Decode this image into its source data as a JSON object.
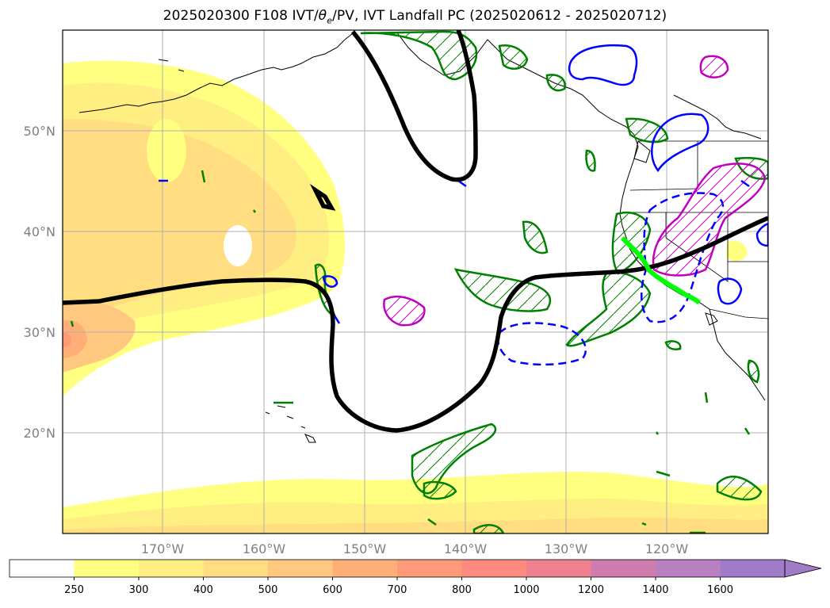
{
  "title": {
    "prefix": "2025020300 F108 IVT/",
    "theta": "θ",
    "theta_sub": "e",
    "suffix": "/PV, IVT Landfall PC (2025020612 - 2025020712)"
  },
  "axes": {
    "lat_labels": [
      "50°N",
      "40°N",
      "30°N",
      "20°N"
    ],
    "lon_labels": [
      "170°W",
      "160°W",
      "150°W",
      "140°W",
      "130°W",
      "120°W"
    ]
  },
  "colorbar": {
    "levels": [
      "250",
      "300",
      "400",
      "500",
      "600",
      "700",
      "800",
      "1000",
      "1200",
      "1400",
      "1600"
    ],
    "colors": [
      "#ffffff",
      "#ffff80",
      "#ffee82",
      "#ffdd80",
      "#ffc880",
      "#ffae78",
      "#ff9a78",
      "#ff8a80",
      "#ee8090",
      "#d07cae",
      "#b880c0",
      "#a07cc8"
    ],
    "extend": "max"
  },
  "colors": {
    "ivt_contour": "#000000",
    "pv_positive": "#0000ff",
    "theta_e": "#008000",
    "pv_magenta": "#c000c0",
    "landfall": "#00ff00",
    "grid": "#b0b0b0",
    "coast": "#000000"
  }
}
